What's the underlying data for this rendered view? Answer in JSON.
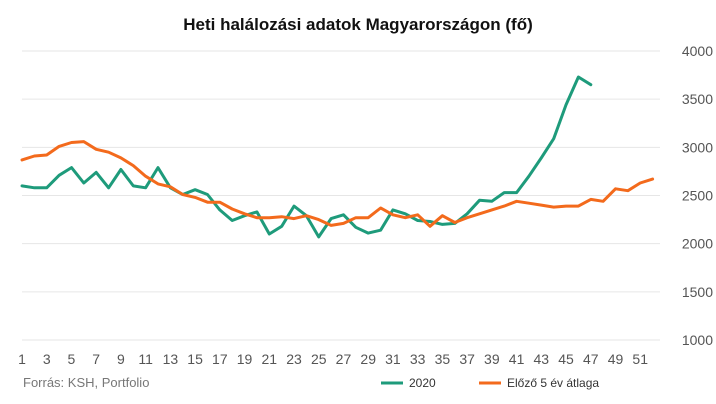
{
  "chart_data": {
    "type": "line",
    "title": "Heti halálozási adatok Magyarországon (fő)",
    "source": "Forrás: KSH, Portfolio",
    "xlabel": "",
    "ylabel": "",
    "x_ticks": [
      "1",
      "3",
      "5",
      "7",
      "9",
      "11",
      "13",
      "15",
      "17",
      "19",
      "21",
      "23",
      "25",
      "27",
      "29",
      "31",
      "33",
      "35",
      "37",
      "39",
      "41",
      "43",
      "45",
      "47",
      "49",
      "51"
    ],
    "y_ticks": [
      "1000",
      "1500",
      "2000",
      "2500",
      "3000",
      "3500",
      "4000"
    ],
    "ylim": [
      1000,
      4000
    ],
    "xlim": [
      1,
      53
    ],
    "grid": true,
    "legend_position": "bottom",
    "series": [
      {
        "name": "2020",
        "color": "#1e9b7b",
        "x": [
          1,
          2,
          3,
          4,
          5,
          6,
          7,
          8,
          9,
          10,
          11,
          12,
          13,
          14,
          15,
          16,
          17,
          18,
          19,
          20,
          21,
          22,
          23,
          24,
          25,
          26,
          27,
          28,
          29,
          30,
          31,
          32,
          33,
          34,
          35,
          36,
          37,
          38,
          39,
          40,
          41,
          42,
          43,
          44,
          45,
          46,
          47
        ],
        "values": [
          2600,
          2580,
          2580,
          2710,
          2790,
          2630,
          2740,
          2580,
          2770,
          2600,
          2580,
          2790,
          2580,
          2510,
          2560,
          2510,
          2350,
          2240,
          2290,
          2330,
          2100,
          2180,
          2390,
          2290,
          2070,
          2260,
          2300,
          2170,
          2110,
          2140,
          2350,
          2310,
          2240,
          2230,
          2200,
          2210,
          2310,
          2450,
          2440,
          2530,
          2530,
          2700,
          2890,
          3090,
          3440,
          3730,
          3650
        ]
      },
      {
        "name": "Előző 5 év átlaga",
        "color": "#f36a1c",
        "x": [
          1,
          2,
          3,
          4,
          5,
          6,
          7,
          8,
          9,
          10,
          11,
          12,
          13,
          14,
          15,
          16,
          17,
          18,
          19,
          20,
          21,
          22,
          23,
          24,
          25,
          26,
          27,
          28,
          29,
          30,
          31,
          32,
          33,
          34,
          35,
          36,
          37,
          38,
          39,
          40,
          41,
          42,
          43,
          44,
          45,
          46,
          47,
          48,
          49,
          50,
          51,
          52
        ],
        "values": [
          2870,
          2910,
          2920,
          3010,
          3050,
          3060,
          2980,
          2950,
          2890,
          2810,
          2700,
          2620,
          2590,
          2510,
          2480,
          2430,
          2430,
          2360,
          2310,
          2270,
          2270,
          2280,
          2260,
          2290,
          2250,
          2190,
          2210,
          2270,
          2270,
          2370,
          2300,
          2270,
          2300,
          2180,
          2290,
          2220,
          2270,
          2310,
          2350,
          2390,
          2440,
          2420,
          2400,
          2380,
          2390,
          2390,
          2460,
          2440,
          2570,
          2550,
          2630,
          2670
        ]
      }
    ]
  }
}
